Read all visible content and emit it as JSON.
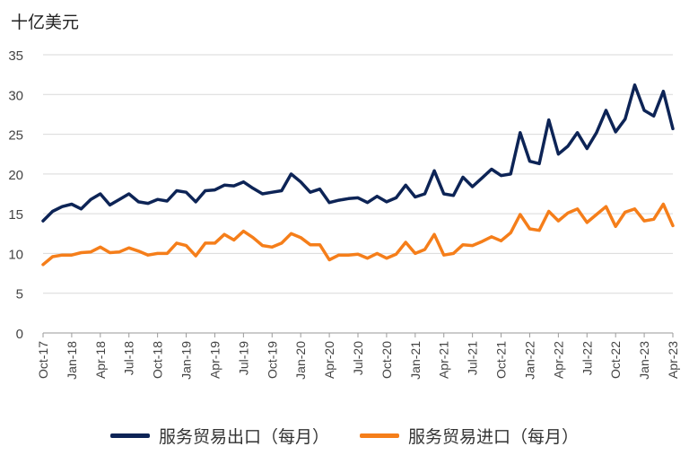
{
  "chart_data": {
    "type": "line",
    "unit_label": "十亿美元",
    "ylim": [
      0,
      35
    ],
    "yticks": [
      0,
      5,
      10,
      15,
      20,
      25,
      30,
      35
    ],
    "x": [
      "Oct-17",
      "Nov-17",
      "Dec-17",
      "Jan-18",
      "Feb-18",
      "Mar-18",
      "Apr-18",
      "May-18",
      "Jun-18",
      "Jul-18",
      "Aug-18",
      "Sep-18",
      "Oct-18",
      "Nov-18",
      "Dec-18",
      "Jan-19",
      "Feb-19",
      "Mar-19",
      "Apr-19",
      "May-19",
      "Jun-19",
      "Jul-19",
      "Aug-19",
      "Sep-19",
      "Oct-19",
      "Nov-19",
      "Dec-19",
      "Jan-20",
      "Feb-20",
      "Mar-20",
      "Apr-20",
      "May-20",
      "Jun-20",
      "Jul-20",
      "Aug-20",
      "Sep-20",
      "Oct-20",
      "Nov-20",
      "Dec-20",
      "Jan-21",
      "Feb-21",
      "Mar-21",
      "Apr-21",
      "May-21",
      "Jun-21",
      "Jul-21",
      "Aug-21",
      "Sep-21",
      "Oct-21",
      "Nov-21",
      "Dec-21",
      "Jan-22",
      "Feb-22",
      "Mar-22",
      "Apr-22",
      "May-22",
      "Jun-22",
      "Jul-22",
      "Aug-22",
      "Sep-22",
      "Oct-22",
      "Nov-22",
      "Dec-22",
      "Jan-23",
      "Feb-23",
      "Mar-23",
      "Apr-23"
    ],
    "xtick_labels": [
      "Oct-17",
      "Jan-18",
      "Apr-18",
      "Jul-18",
      "Oct-18",
      "Jan-19",
      "Apr-19",
      "Jul-19",
      "Oct-19",
      "Jan-20",
      "Apr-20",
      "Jul-20",
      "Oct-20",
      "Jan-21",
      "Apr-21",
      "Jul-21",
      "Oct-21",
      "Jan-22",
      "Apr-22",
      "Jul-22",
      "Oct-22",
      "Jan-23",
      "Apr-23"
    ],
    "grid": true,
    "legend_position": "bottom",
    "series": [
      {
        "name": "服务贸易出口（每月）",
        "color": "#0d2456",
        "values": [
          14.1,
          15.3,
          15.9,
          16.2,
          15.6,
          16.8,
          17.5,
          16.1,
          16.8,
          17.5,
          16.5,
          16.3,
          16.8,
          16.6,
          17.9,
          17.7,
          16.5,
          17.9,
          18.0,
          18.6,
          18.5,
          19.0,
          18.2,
          17.5,
          17.7,
          17.9,
          20.0,
          19.0,
          17.7,
          18.1,
          16.4,
          16.7,
          16.9,
          17.0,
          16.4,
          17.2,
          16.5,
          17.0,
          18.6,
          17.1,
          17.5,
          20.4,
          17.5,
          17.3,
          19.6,
          18.4,
          19.5,
          20.6,
          19.8,
          20.0,
          25.2,
          21.6,
          21.3,
          26.8,
          22.5,
          23.5,
          25.2,
          23.2,
          25.2,
          28.0,
          25.3,
          26.9,
          31.2,
          28.0,
          27.3,
          30.4,
          25.7
        ]
      },
      {
        "name": "服务贸易进口（每月）",
        "color": "#f57e1a",
        "values": [
          8.6,
          9.6,
          9.8,
          9.8,
          10.1,
          10.2,
          10.8,
          10.1,
          10.2,
          10.7,
          10.3,
          9.8,
          10.0,
          10.0,
          11.3,
          11.0,
          9.7,
          11.3,
          11.3,
          12.4,
          11.7,
          12.8,
          12.0,
          11.0,
          10.8,
          11.3,
          12.5,
          12.0,
          11.1,
          11.1,
          9.2,
          9.8,
          9.8,
          9.9,
          9.4,
          10.0,
          9.4,
          9.9,
          11.4,
          10.0,
          10.5,
          12.4,
          9.8,
          10.0,
          11.1,
          11.0,
          11.5,
          12.1,
          11.6,
          12.6,
          14.9,
          13.1,
          12.9,
          15.3,
          14.1,
          15.1,
          15.6,
          13.9,
          14.9,
          15.9,
          13.4,
          15.2,
          15.6,
          14.1,
          14.3,
          16.2,
          13.5
        ]
      }
    ]
  }
}
